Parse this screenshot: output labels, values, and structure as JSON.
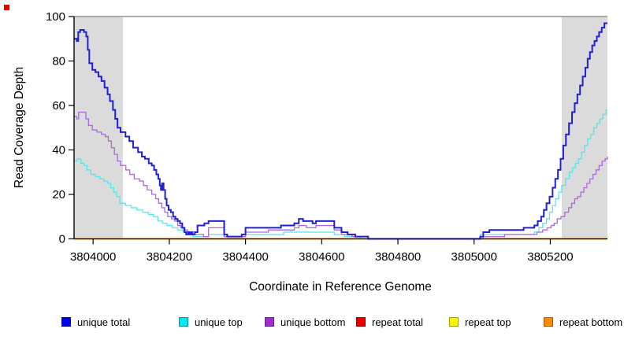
{
  "chart_data": {
    "type": "line",
    "title": "",
    "xlabel": "Coordinate in Reference Genome",
    "ylabel": "Read Coverage Depth",
    "xlim": [
      3803950,
      3805350
    ],
    "ylim": [
      0,
      100
    ],
    "x_ticks": [
      3804000,
      3804200,
      3804400,
      3804600,
      3804800,
      3805000,
      3805200
    ],
    "y_ticks": [
      0,
      20,
      40,
      60,
      80,
      100
    ],
    "grid": false,
    "step": true,
    "legend_position": "bottom",
    "shaded_regions": [
      {
        "x0": 3803950,
        "x1": 3804078,
        "color": "#dbdbdb"
      },
      {
        "x0": 3805230,
        "x1": 3805350,
        "color": "#dbdbdb"
      }
    ],
    "top_rule_color": "#909090",
    "legend": [
      {
        "label": "unique total",
        "color": "#0000ee"
      },
      {
        "label": "unique top",
        "color": "#00e8f0"
      },
      {
        "label": "unique bottom",
        "color": "#a12ccf"
      },
      {
        "label": "repeat total",
        "color": "#e80000"
      },
      {
        "label": "repeat top",
        "color": "#f6f600"
      },
      {
        "label": "repeat bottom",
        "color": "#ff8c00"
      }
    ],
    "series": [
      {
        "name": "repeat total",
        "color": "#cc0000",
        "points": [
          [
            3803950,
            0
          ],
          [
            3805350,
            0
          ]
        ]
      },
      {
        "name": "repeat top",
        "color": "#f6f600",
        "points": [
          [
            3803950,
            0
          ],
          [
            3805350,
            0
          ]
        ]
      },
      {
        "name": "repeat bottom",
        "color": "#ff8c00",
        "points": [
          [
            3803950,
            0
          ],
          [
            3805350,
            0
          ]
        ]
      },
      {
        "name": "unique top",
        "color": "#55e6ec",
        "points": [
          [
            3803950,
            35
          ],
          [
            3803958,
            36
          ],
          [
            3803968,
            34
          ],
          [
            3803976,
            33
          ],
          [
            3803984,
            31
          ],
          [
            3803994,
            29
          ],
          [
            3804006,
            28
          ],
          [
            3804018,
            27
          ],
          [
            3804028,
            26
          ],
          [
            3804038,
            25
          ],
          [
            3804046,
            23
          ],
          [
            3804054,
            21
          ],
          [
            3804062,
            19
          ],
          [
            3804070,
            16
          ],
          [
            3804085,
            15
          ],
          [
            3804100,
            14
          ],
          [
            3804115,
            13
          ],
          [
            3804130,
            12
          ],
          [
            3804145,
            11
          ],
          [
            3804158,
            10
          ],
          [
            3804170,
            8
          ],
          [
            3804182,
            7
          ],
          [
            3804194,
            6
          ],
          [
            3804208,
            5
          ],
          [
            3804222,
            4
          ],
          [
            3804236,
            3
          ],
          [
            3804248,
            2
          ],
          [
            3804262,
            1
          ],
          [
            3804303,
            2
          ],
          [
            3804344,
            1
          ],
          [
            3804400,
            2
          ],
          [
            3804500,
            3
          ],
          [
            3804633,
            2
          ],
          [
            3804660,
            1
          ],
          [
            3804700,
            0
          ],
          [
            3805016,
            2
          ],
          [
            3805100,
            2
          ],
          [
            3805158,
            3
          ],
          [
            3805170,
            5
          ],
          [
            3805180,
            7
          ],
          [
            3805190,
            9
          ],
          [
            3805198,
            12
          ],
          [
            3805206,
            15
          ],
          [
            3805214,
            18
          ],
          [
            3805222,
            21
          ],
          [
            3805230,
            24
          ],
          [
            3805240,
            27
          ],
          [
            3805250,
            30
          ],
          [
            3805258,
            32
          ],
          [
            3805266,
            34
          ],
          [
            3805274,
            36
          ],
          [
            3805282,
            39
          ],
          [
            3805290,
            42
          ],
          [
            3805298,
            45
          ],
          [
            3805306,
            47
          ],
          [
            3805314,
            50
          ],
          [
            3805322,
            52
          ],
          [
            3805330,
            54
          ],
          [
            3805338,
            56
          ],
          [
            3805346,
            58
          ],
          [
            3805350,
            58
          ]
        ]
      },
      {
        "name": "unique bottom",
        "color": "#ad68df",
        "points": [
          [
            3803950,
            55
          ],
          [
            3803957,
            54
          ],
          [
            3803962,
            57
          ],
          [
            3803975,
            57
          ],
          [
            3803981,
            54
          ],
          [
            3803988,
            51
          ],
          [
            3803998,
            49
          ],
          [
            3804010,
            48
          ],
          [
            3804022,
            47
          ],
          [
            3804032,
            46
          ],
          [
            3804040,
            44
          ],
          [
            3804048,
            41
          ],
          [
            3804056,
            38
          ],
          [
            3804064,
            35
          ],
          [
            3804072,
            33
          ],
          [
            3804086,
            31
          ],
          [
            3804096,
            29
          ],
          [
            3804108,
            27
          ],
          [
            3804122,
            26
          ],
          [
            3804132,
            24
          ],
          [
            3804142,
            22
          ],
          [
            3804154,
            20
          ],
          [
            3804164,
            18
          ],
          [
            3804172,
            16
          ],
          [
            3804180,
            14
          ],
          [
            3804188,
            12
          ],
          [
            3804196,
            10
          ],
          [
            3804206,
            9
          ],
          [
            3804214,
            8
          ],
          [
            3804222,
            6
          ],
          [
            3804230,
            5
          ],
          [
            3804238,
            4
          ],
          [
            3804248,
            3
          ],
          [
            3804258,
            2
          ],
          [
            3804290,
            1
          ],
          [
            3804303,
            5
          ],
          [
            3804344,
            1
          ],
          [
            3804400,
            3
          ],
          [
            3804460,
            4
          ],
          [
            3804528,
            5
          ],
          [
            3804540,
            6
          ],
          [
            3804560,
            5
          ],
          [
            3804585,
            6
          ],
          [
            3804633,
            4
          ],
          [
            3804652,
            2
          ],
          [
            3804680,
            1
          ],
          [
            3804722,
            0
          ],
          [
            3805024,
            1
          ],
          [
            3805080,
            2
          ],
          [
            3805150,
            2
          ],
          [
            3805165,
            3
          ],
          [
            3805180,
            4
          ],
          [
            3805192,
            5
          ],
          [
            3805202,
            6
          ],
          [
            3805210,
            7
          ],
          [
            3805218,
            9
          ],
          [
            3805228,
            10
          ],
          [
            3805238,
            12
          ],
          [
            3805248,
            14
          ],
          [
            3805256,
            16
          ],
          [
            3805264,
            18
          ],
          [
            3805272,
            19
          ],
          [
            3805280,
            21
          ],
          [
            3805288,
            23
          ],
          [
            3805296,
            25
          ],
          [
            3805304,
            27
          ],
          [
            3805312,
            29
          ],
          [
            3805320,
            31
          ],
          [
            3805328,
            33
          ],
          [
            3805336,
            35
          ],
          [
            3805344,
            36
          ],
          [
            3805350,
            37
          ]
        ]
      },
      {
        "name": "unique total",
        "color": "#2020d0",
        "points": [
          [
            3803950,
            90
          ],
          [
            3803957,
            89
          ],
          [
            3803961,
            93
          ],
          [
            3803966,
            94
          ],
          [
            3803976,
            93
          ],
          [
            3803982,
            91
          ],
          [
            3803986,
            85
          ],
          [
            3803990,
            79
          ],
          [
            3803998,
            76
          ],
          [
            3804006,
            75
          ],
          [
            3804014,
            73
          ],
          [
            3804022,
            71
          ],
          [
            3804030,
            68
          ],
          [
            3804038,
            65
          ],
          [
            3804044,
            62
          ],
          [
            3804052,
            58
          ],
          [
            3804058,
            54
          ],
          [
            3804064,
            50
          ],
          [
            3804072,
            48
          ],
          [
            3804085,
            46
          ],
          [
            3804095,
            44
          ],
          [
            3804105,
            41
          ],
          [
            3804118,
            39
          ],
          [
            3804128,
            37
          ],
          [
            3804136,
            36
          ],
          [
            3804146,
            34
          ],
          [
            3804154,
            33
          ],
          [
            3804160,
            31
          ],
          [
            3804166,
            29
          ],
          [
            3804171,
            27
          ],
          [
            3804175,
            24
          ],
          [
            3804178,
            22
          ],
          [
            3804181,
            25
          ],
          [
            3804185,
            22
          ],
          [
            3804189,
            18
          ],
          [
            3804193,
            15
          ],
          [
            3804198,
            13
          ],
          [
            3804204,
            12
          ],
          [
            3804210,
            10
          ],
          [
            3804216,
            9
          ],
          [
            3804222,
            8
          ],
          [
            3804228,
            7
          ],
          [
            3804234,
            5
          ],
          [
            3804240,
            3
          ],
          [
            3804244,
            2
          ],
          [
            3804249,
            3
          ],
          [
            3804253,
            2
          ],
          [
            3804257,
            3
          ],
          [
            3804261,
            2
          ],
          [
            3804267,
            3
          ],
          [
            3804274,
            6
          ],
          [
            3804292,
            7
          ],
          [
            3804303,
            8
          ],
          [
            3804344,
            2
          ],
          [
            3804352,
            1
          ],
          [
            3804390,
            2
          ],
          [
            3804400,
            5
          ],
          [
            3804493,
            6
          ],
          [
            3804528,
            7
          ],
          [
            3804540,
            9
          ],
          [
            3804551,
            8
          ],
          [
            3804576,
            7
          ],
          [
            3804585,
            8
          ],
          [
            3804633,
            5
          ],
          [
            3804652,
            3
          ],
          [
            3804668,
            2
          ],
          [
            3804688,
            1
          ],
          [
            3804722,
            0
          ],
          [
            3805016,
            1
          ],
          [
            3805024,
            3
          ],
          [
            3805040,
            4
          ],
          [
            3805130,
            5
          ],
          [
            3805158,
            6
          ],
          [
            3805167,
            8
          ],
          [
            3805176,
            10
          ],
          [
            3805183,
            13
          ],
          [
            3805190,
            16
          ],
          [
            3805198,
            19
          ],
          [
            3805206,
            23
          ],
          [
            3805213,
            27
          ],
          [
            3805220,
            31
          ],
          [
            3805227,
            36
          ],
          [
            3805234,
            42
          ],
          [
            3805241,
            47
          ],
          [
            3805249,
            52
          ],
          [
            3805257,
            57
          ],
          [
            3805264,
            61
          ],
          [
            3805271,
            65
          ],
          [
            3805278,
            69
          ],
          [
            3805285,
            73
          ],
          [
            3805292,
            77
          ],
          [
            3805298,
            81
          ],
          [
            3805304,
            84
          ],
          [
            3805310,
            87
          ],
          [
            3805316,
            89
          ],
          [
            3805322,
            91
          ],
          [
            3805328,
            93
          ],
          [
            3805335,
            95
          ],
          [
            3805342,
            97
          ],
          [
            3805350,
            97
          ]
        ]
      }
    ]
  }
}
